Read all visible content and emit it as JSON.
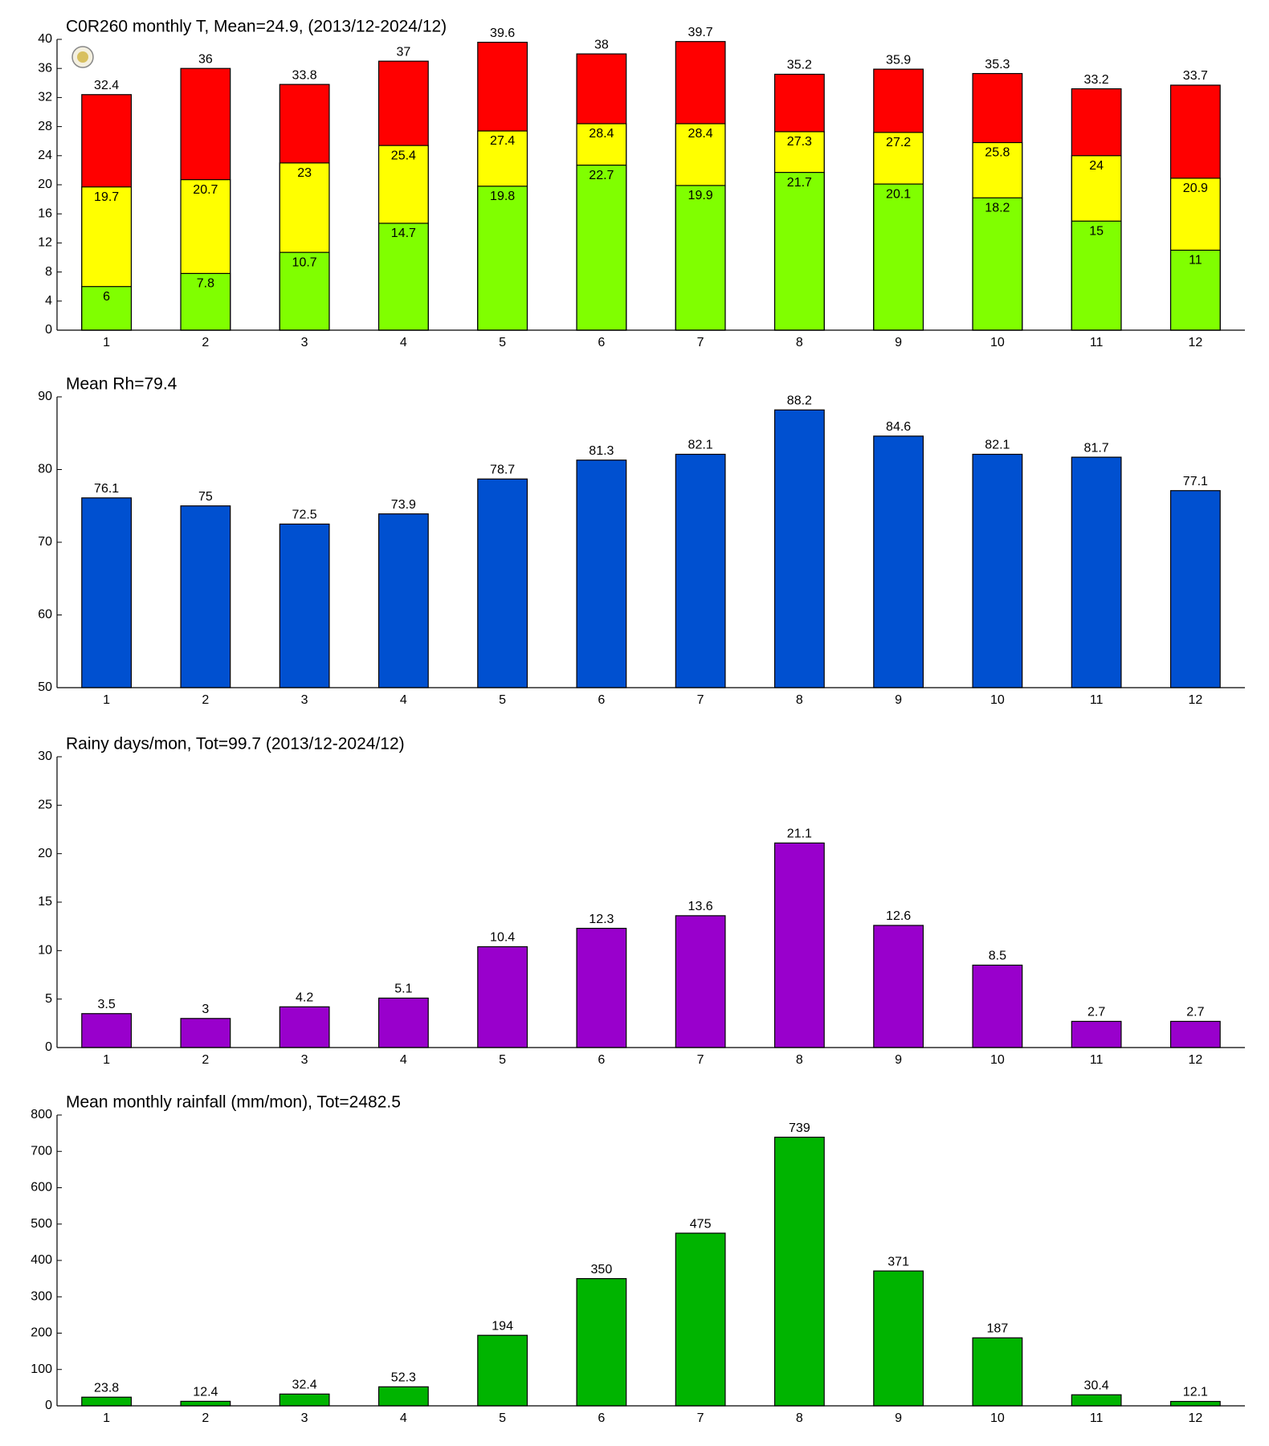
{
  "chart_data": [
    {
      "type": "bar",
      "title": "C0R260 monthly T, Mean=24.9, (2013/12-2024/12)",
      "categories": [
        "1",
        "2",
        "3",
        "4",
        "5",
        "6",
        "7",
        "8",
        "9",
        "10",
        "11",
        "12"
      ],
      "series": [
        {
          "color": "#ff0000",
          "values": [
            32.4,
            36,
            33.8,
            37,
            39.6,
            38,
            39.7,
            35.2,
            35.9,
            35.3,
            33.2,
            33.7
          ]
        },
        {
          "color": "#ffff00",
          "values": [
            19.7,
            20.7,
            23,
            25.4,
            27.4,
            28.4,
            28.4,
            27.3,
            27.2,
            25.8,
            24,
            20.9
          ]
        },
        {
          "color": "#80ff00",
          "values": [
            6,
            7.8,
            10.7,
            14.7,
            19.8,
            22.7,
            19.9,
            21.7,
            20.1,
            18.2,
            15,
            11
          ]
        }
      ],
      "ylim": [
        0,
        40
      ],
      "yticks": [
        0,
        4,
        8,
        12,
        16,
        20,
        24,
        28,
        32,
        36,
        40
      ]
    },
    {
      "type": "bar",
      "title": "Mean Rh=79.4",
      "categories": [
        "1",
        "2",
        "3",
        "4",
        "5",
        "6",
        "7",
        "8",
        "9",
        "10",
        "11",
        "12"
      ],
      "values": [
        76.1,
        75,
        72.5,
        73.9,
        78.7,
        81.3,
        82.1,
        88.2,
        84.6,
        82.1,
        81.7,
        77.1
      ],
      "color": "#0050d0",
      "ylim": [
        50,
        90
      ],
      "yticks": [
        50,
        60,
        70,
        80,
        90
      ]
    },
    {
      "type": "bar",
      "title": "Rainy days/mon, Tot=99.7 (2013/12-2024/12)",
      "categories": [
        "1",
        "2",
        "3",
        "4",
        "5",
        "6",
        "7",
        "8",
        "9",
        "10",
        "11",
        "12"
      ],
      "values": [
        3.5,
        3,
        4.2,
        5.1,
        10.4,
        12.3,
        13.6,
        21.1,
        12.6,
        8.5,
        2.7,
        2.7
      ],
      "color": "#9900cc",
      "ylim": [
        0,
        30
      ],
      "yticks": [
        0,
        5,
        10,
        15,
        20,
        25,
        30
      ]
    },
    {
      "type": "bar",
      "title": "Mean monthly rainfall (mm/mon), Tot=2482.5",
      "categories": [
        "1",
        "2",
        "3",
        "4",
        "5",
        "6",
        "7",
        "8",
        "9",
        "10",
        "11",
        "12"
      ],
      "values": [
        23.8,
        12.4,
        32.4,
        52.3,
        194,
        350,
        475,
        739,
        371,
        187,
        30.4,
        12.1
      ],
      "color": "#00b400",
      "ylim": [
        0,
        800
      ],
      "yticks": [
        0,
        100,
        200,
        300,
        400,
        500,
        600,
        700,
        800
      ]
    }
  ]
}
